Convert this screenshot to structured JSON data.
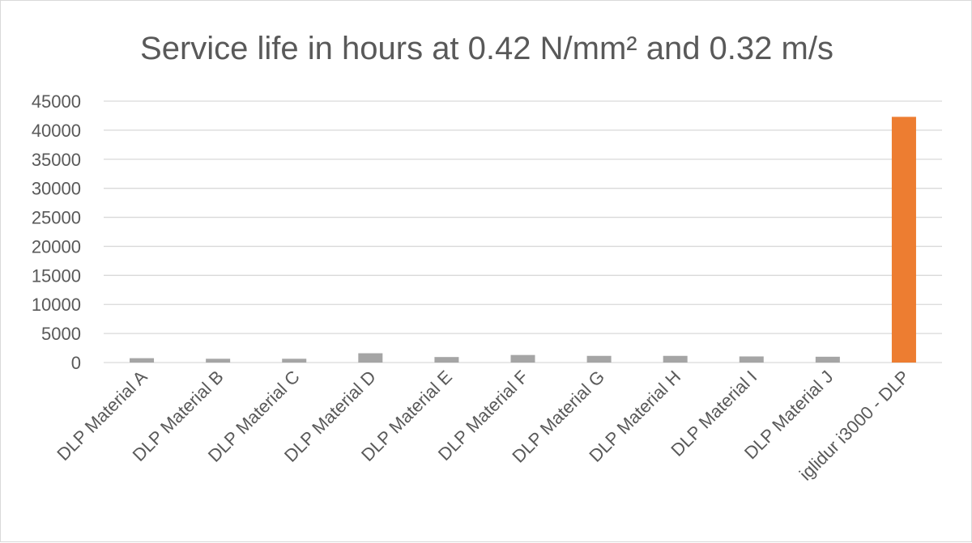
{
  "chart_data": {
    "type": "bar",
    "title": "Service life in hours at 0.42 N/mm² and 0.32 m/s",
    "xlabel": "",
    "ylabel": "",
    "ylim": [
      0,
      45000
    ],
    "yticks": [
      0,
      5000,
      10000,
      15000,
      20000,
      25000,
      30000,
      35000,
      40000,
      45000
    ],
    "grid": "horizontal",
    "legend": "none",
    "categories": [
      "DLP Material A",
      "DLP Material B",
      "DLP Material C",
      "DLP Material D",
      "DLP Material E",
      "DLP Material F",
      "DLP Material G",
      "DLP Material H",
      "DLP Material I",
      "DLP Material J",
      "iglidur i3000 - DLP"
    ],
    "values": [
      750,
      650,
      650,
      1600,
      950,
      1300,
      1150,
      1150,
      1050,
      1000,
      42300
    ],
    "bar_colors": [
      "#a5a5a5",
      "#a5a5a5",
      "#a5a5a5",
      "#a5a5a5",
      "#a5a5a5",
      "#a5a5a5",
      "#a5a5a5",
      "#a5a5a5",
      "#a5a5a5",
      "#a5a5a5",
      "#ed7d31"
    ]
  }
}
